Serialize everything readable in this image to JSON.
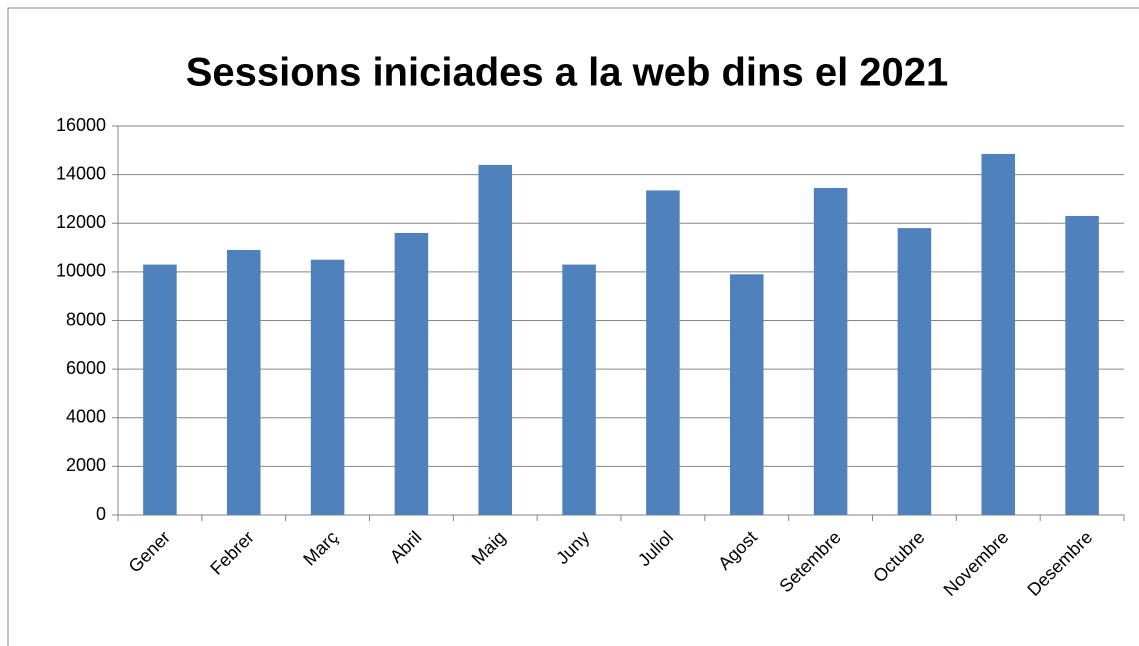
{
  "chart_data": {
    "type": "bar",
    "title": "Sessions iniciades a la web dins el 2021",
    "categories": [
      "Gener",
      "Febrer",
      "Març",
      "Abril",
      "Maig",
      "Juny",
      "Juliol",
      "Agost",
      "Setembre",
      "Octubre",
      "Novembre",
      "Desembre"
    ],
    "values": [
      10300,
      10900,
      10500,
      11600,
      14400,
      10300,
      13350,
      9900,
      13450,
      11800,
      14850,
      12300
    ],
    "color": "#4f81bd",
    "ylim": [
      0,
      16000
    ],
    "yticks": [
      0,
      2000,
      4000,
      6000,
      8000,
      10000,
      12000,
      14000,
      16000
    ],
    "grid": true
  }
}
